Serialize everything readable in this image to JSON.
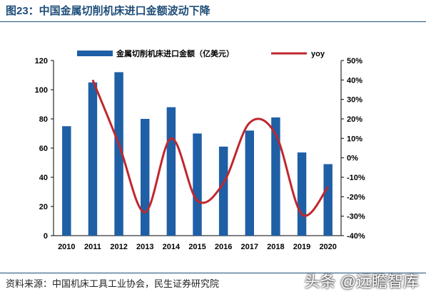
{
  "figure_title": "图23：中国金属切削机床进口金额波动下降",
  "source": "资料来源：中国机床工具工业协会，民生证券研究院",
  "watermark": "头条 @远瞻智库",
  "chart_data": {
    "type": "bar+line",
    "categories": [
      "2010",
      "2011",
      "2012",
      "2013",
      "2014",
      "2015",
      "2016",
      "2017",
      "2018",
      "2019",
      "2020"
    ],
    "series": [
      {
        "name": "金属切削机床进口金额（亿美元）",
        "type": "bar",
        "axis": "left",
        "color": "#1f5fa6",
        "values": [
          75,
          105,
          112,
          80,
          88,
          70,
          61,
          72,
          81,
          57,
          49
        ]
      },
      {
        "name": "yoy",
        "type": "line",
        "axis": "right",
        "color": "#c0272d",
        "values": [
          null,
          40,
          7,
          -28,
          10,
          -22,
          -13,
          18,
          12,
          -29,
          -15
        ]
      }
    ],
    "left_axis": {
      "ylim": [
        0,
        120
      ],
      "ticks": [
        0,
        20,
        40,
        60,
        80,
        100,
        120
      ],
      "tick_labels": [
        "0",
        "20",
        "40",
        "60",
        "80",
        "100",
        "120"
      ]
    },
    "right_axis": {
      "ylim": [
        -40,
        50
      ],
      "ticks": [
        -40,
        -30,
        -20,
        -10,
        0,
        10,
        20,
        30,
        40,
        50
      ],
      "tick_labels": [
        "-40%",
        "-30%",
        "-20%",
        "-10%",
        "0%",
        "10%",
        "20%",
        "30%",
        "40%",
        "50%"
      ]
    },
    "legend_position": "top",
    "grid": false
  }
}
